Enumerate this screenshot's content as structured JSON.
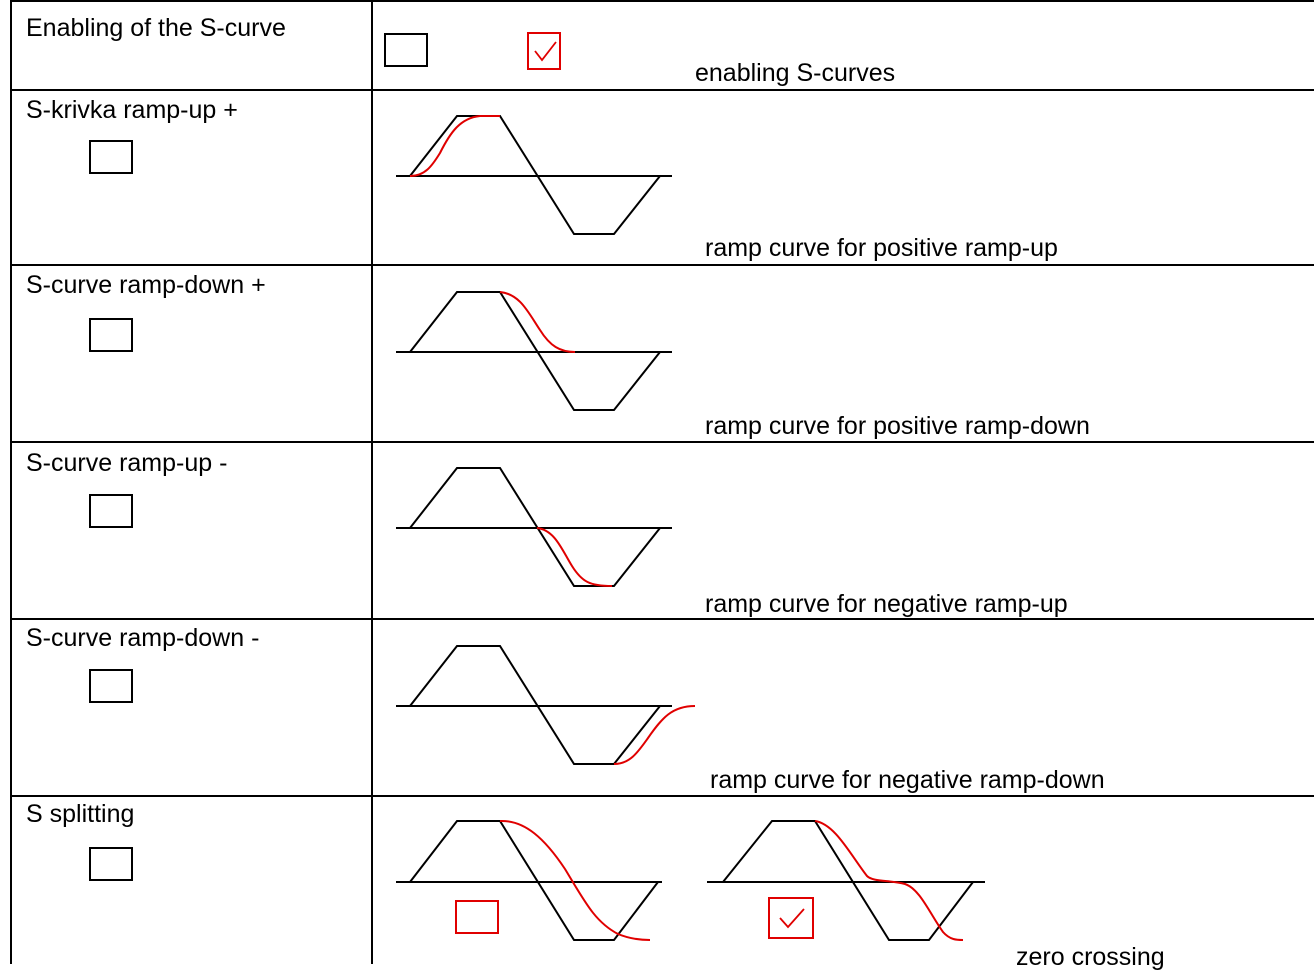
{
  "rows": [
    {
      "label": "Enabling of the S-curve",
      "description": "enabling S-curves"
    },
    {
      "label": "S-krivka ramp-up +",
      "description": "ramp curve for positive ramp-up"
    },
    {
      "label": "S-curve ramp-down +",
      "description": "ramp curve for positive ramp-down"
    },
    {
      "label": "S-curve ramp-up -",
      "description": "ramp curve for negative ramp-up"
    },
    {
      "label": "S-curve ramp-down -",
      "description": "ramp curve for negative ramp-down"
    },
    {
      "label": "S splitting",
      "description": "zero crossing"
    }
  ],
  "checkboxes": {
    "enable_unchecked": false,
    "enable_checked": true,
    "ramp_up_pos": false,
    "ramp_down_pos": false,
    "ramp_up_neg": false,
    "ramp_down_neg": false,
    "splitting": false,
    "splitting_without_zero_crossing": false,
    "splitting_with_zero_crossing": true
  },
  "colors": {
    "line": "#000000",
    "accent": "#e00000"
  }
}
